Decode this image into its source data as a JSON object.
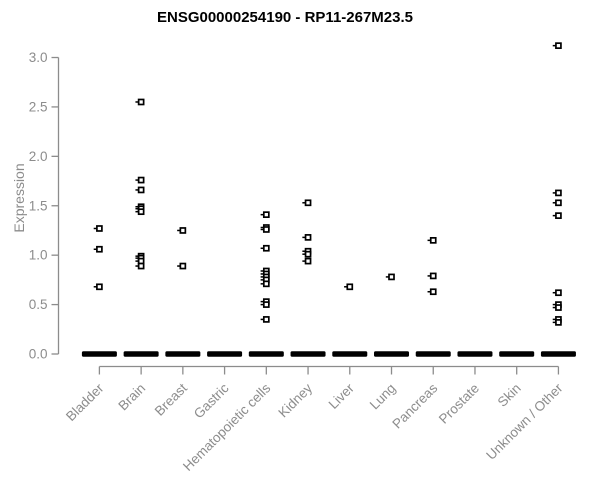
{
  "chart_data": {
    "type": "scatter",
    "title": "ENSG00000254190 - RP11-267M23.5",
    "xlabel": "",
    "ylabel": "Expression",
    "ylim": [
      0.0,
      3.0
    ],
    "ytick_labels": [
      "0.0",
      "0.5",
      "1.0",
      "1.5",
      "2.0",
      "2.5",
      "3.0"
    ],
    "ytick_values": [
      0.0,
      0.5,
      1.0,
      1.5,
      2.0,
      2.5,
      3.0
    ],
    "grid": false,
    "legend": "none",
    "marker_style": "open-square",
    "colors": {
      "marker_stroke": "#000000",
      "marker_fill": "#ffffff",
      "zero_bar": "#000000",
      "axis": "#8c8c8c",
      "title_text": "#000000"
    },
    "categories": [
      "Bladder",
      "Brain",
      "Breast",
      "Gastric",
      "Hematopoietic cells",
      "Kidney",
      "Liver",
      "Lung",
      "Pancreas",
      "Prostate",
      "Skin",
      "Unknown / Other"
    ],
    "series": [
      {
        "category": "Bladder",
        "values": [
          1.27,
          1.06,
          0.68
        ],
        "zero_cluster_bar": true
      },
      {
        "category": "Brain",
        "values": [
          2.55,
          1.76,
          1.66,
          1.49,
          1.47,
          1.44,
          0.99,
          0.97,
          0.94,
          0.89
        ],
        "zero_cluster_bar": true
      },
      {
        "category": "Breast",
        "values": [
          1.25,
          0.89
        ],
        "zero_cluster_bar": true
      },
      {
        "category": "Gastric",
        "values": [],
        "zero_cluster_bar": true
      },
      {
        "category": "Hematopoietic cells",
        "values": [
          1.41,
          1.28,
          1.26,
          1.07,
          0.84,
          0.81,
          0.78,
          0.75,
          0.71,
          0.53,
          0.5,
          0.35
        ],
        "zero_cluster_bar": true
      },
      {
        "category": "Kidney",
        "values": [
          1.53,
          1.18,
          1.04,
          1.01,
          0.94
        ],
        "zero_cluster_bar": true
      },
      {
        "category": "Liver",
        "values": [
          0.68
        ],
        "zero_cluster_bar": true
      },
      {
        "category": "Lung",
        "values": [
          0.78
        ],
        "zero_cluster_bar": true
      },
      {
        "category": "Pancreas",
        "values": [
          1.15,
          0.79,
          0.63
        ],
        "zero_cluster_bar": true
      },
      {
        "category": "Prostate",
        "values": [],
        "zero_cluster_bar": true
      },
      {
        "category": "Skin",
        "values": [],
        "zero_cluster_bar": true
      },
      {
        "category": "Unknown / Other",
        "values": [
          3.12,
          1.63,
          1.53,
          1.4,
          0.62,
          0.5,
          0.47,
          0.35,
          0.32
        ],
        "zero_cluster_bar": true
      }
    ],
    "note": "Each category shows a dense horizontal bar of many overlapping samples at expression 0"
  }
}
